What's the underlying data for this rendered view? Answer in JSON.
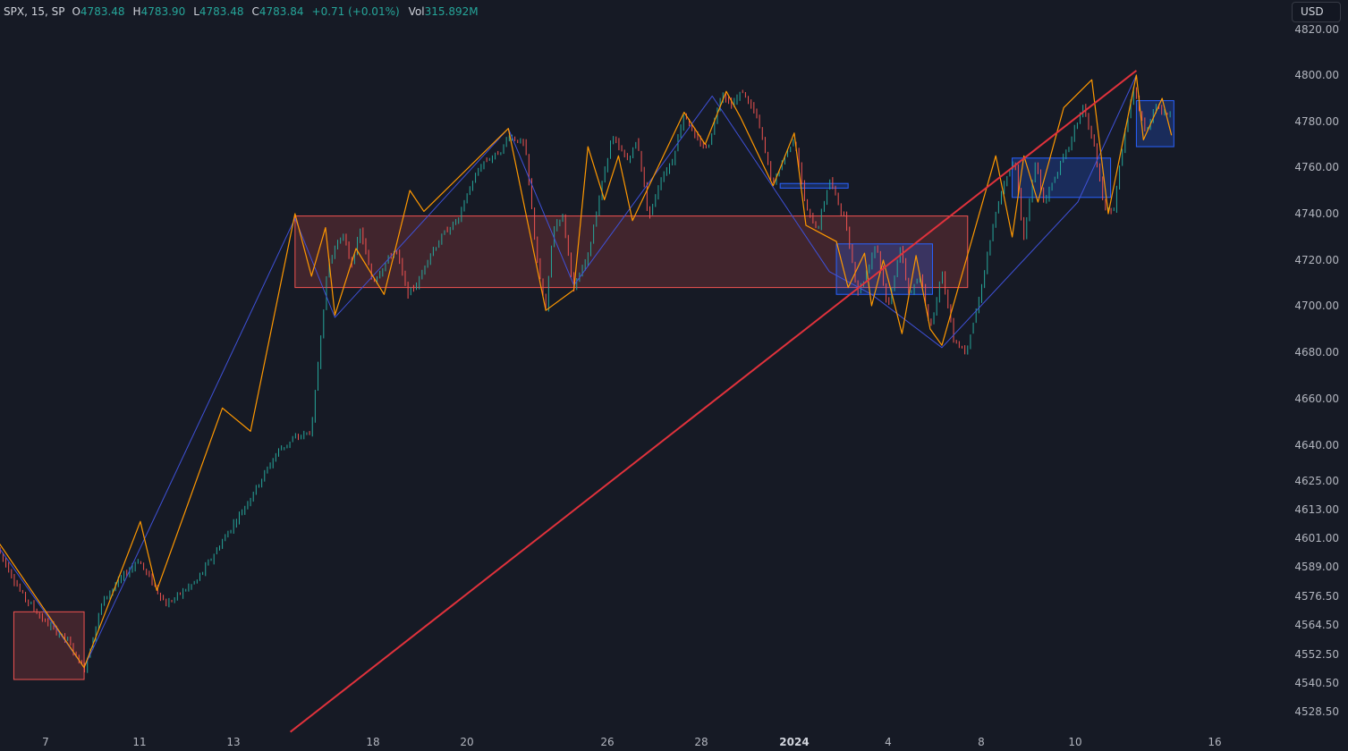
{
  "legend": {
    "symbol_text": "SPX, 15, SP",
    "open_key": "O",
    "open": "4783.48",
    "high_key": "H",
    "high": "4783.90",
    "low_key": "L",
    "low": "4783.48",
    "close_key": "C",
    "close": "4783.84",
    "change": "+0.71 (+0.01%)",
    "vol_key": "Vol",
    "volume": "315.892M"
  },
  "currency_button": "USD",
  "colors": {
    "background": "#161a25",
    "up": "#26a69a",
    "down": "#ef5350",
    "zigzag_minor": "#ff9800",
    "zigzag_major": "#3f51d8",
    "trendline": "#e0323c",
    "zone_bearish": "#ef5350",
    "zone_bullish": "#2962ff",
    "axis_text": "#b2b5be"
  },
  "chart_data": {
    "type": "candlestick",
    "symbol": "SPX",
    "interval": "15",
    "y_axis": {
      "labels": [
        "4820.00",
        "4800.00",
        "4780.00",
        "4760.00",
        "4740.00",
        "4720.00",
        "4700.00",
        "4680.00",
        "4660.00",
        "4640.00",
        "4625.00",
        "4613.00",
        "4601.00",
        "4589.00",
        "4576.50",
        "4564.50",
        "4552.50",
        "4540.50",
        "4528.50"
      ]
    },
    "x_axis": {
      "labels": [
        {
          "text": "7"
        },
        {
          "text": "11"
        },
        {
          "text": "13"
        },
        {
          "text": "18"
        },
        {
          "text": "20"
        },
        {
          "text": "26"
        },
        {
          "text": "28"
        },
        {
          "text": "2024",
          "bold": true
        },
        {
          "text": "4"
        },
        {
          "text": "8"
        },
        {
          "text": "10"
        },
        {
          "text": "16"
        }
      ]
    },
    "price_path": [
      [
        -2,
        4597
      ],
      [
        -1,
        4578
      ],
      [
        0,
        4566
      ],
      [
        1,
        4558
      ],
      [
        1.7,
        4546
      ],
      [
        2.5,
        4575
      ],
      [
        4,
        4592
      ],
      [
        5.2,
        4573
      ],
      [
        6.5,
        4583
      ],
      [
        8.6,
        4615
      ],
      [
        10,
        4638
      ],
      [
        10.7,
        4643
      ],
      [
        11.4,
        4646
      ],
      [
        12.1,
        4718
      ],
      [
        12.7,
        4732
      ],
      [
        13.1,
        4718
      ],
      [
        13.5,
        4733
      ],
      [
        14,
        4710
      ],
      [
        14.5,
        4718
      ],
      [
        15,
        4725
      ],
      [
        15.5,
        4705
      ],
      [
        16,
        4711
      ],
      [
        16.3,
        4720
      ],
      [
        17.1,
        4732
      ],
      [
        17.7,
        4738
      ],
      [
        18.1,
        4750
      ],
      [
        18.7,
        4762
      ],
      [
        19.5,
        4767
      ],
      [
        19.8,
        4774
      ],
      [
        20.5,
        4770
      ],
      [
        21.1,
        4714
      ],
      [
        21.4,
        4698
      ],
      [
        21.7,
        4733
      ],
      [
        22.1,
        4740
      ],
      [
        22.6,
        4707
      ],
      [
        23.2,
        4722
      ],
      [
        23.6,
        4743
      ],
      [
        24.2,
        4773
      ],
      [
        24.9,
        4763
      ],
      [
        25.3,
        4772
      ],
      [
        25.8,
        4738
      ],
      [
        26.3,
        4755
      ],
      [
        26.8,
        4763
      ],
      [
        27.3,
        4784
      ],
      [
        27.8,
        4772
      ],
      [
        28.3,
        4768
      ],
      [
        28.9,
        4793
      ],
      [
        29.3,
        4787
      ],
      [
        29.8,
        4793
      ],
      [
        30.4,
        4782
      ],
      [
        31.1,
        4752
      ],
      [
        31.5,
        4763
      ],
      [
        32,
        4773
      ],
      [
        32.5,
        4742
      ],
      [
        33,
        4733
      ],
      [
        33.5,
        4755
      ],
      [
        34.2,
        4736
      ],
      [
        34.7,
        4706
      ],
      [
        35,
        4712
      ],
      [
        35.5,
        4728
      ],
      [
        36,
        4698
      ],
      [
        36.5,
        4726
      ],
      [
        36.9,
        4705
      ],
      [
        37.4,
        4713
      ],
      [
        37.8,
        4690
      ],
      [
        38.3,
        4715
      ],
      [
        38.8,
        4686
      ],
      [
        39.3,
        4680
      ],
      [
        39.9,
        4703
      ],
      [
        40.3,
        4726
      ],
      [
        40.8,
        4748
      ],
      [
        41.4,
        4764
      ],
      [
        41.8,
        4729
      ],
      [
        42.3,
        4764
      ],
      [
        42.6,
        4744
      ],
      [
        43.3,
        4760
      ],
      [
        43.8,
        4771
      ],
      [
        44.3,
        4787
      ],
      [
        44.8,
        4769
      ],
      [
        45.2,
        4743
      ],
      [
        45.6,
        4740
      ],
      [
        46.1,
        4775
      ],
      [
        46.5,
        4794
      ],
      [
        47,
        4774
      ],
      [
        47.4,
        4788
      ],
      [
        47.8,
        4783
      ],
      [
        48.1,
        4784
      ]
    ],
    "zigzag_minor": [
      [
        -2,
        4600
      ],
      [
        1.7,
        4547
      ],
      [
        4.1,
        4608
      ],
      [
        4.8,
        4579
      ],
      [
        7.6,
        4656
      ],
      [
        8.8,
        4646
      ],
      [
        10.7,
        4740
      ],
      [
        11.4,
        4713
      ],
      [
        12,
        4734
      ],
      [
        12.4,
        4696
      ],
      [
        13.3,
        4725
      ],
      [
        14.5,
        4705
      ],
      [
        15.6,
        4750
      ],
      [
        16.2,
        4741
      ],
      [
        19.8,
        4777
      ],
      [
        21.4,
        4698
      ],
      [
        22.6,
        4707
      ],
      [
        23.2,
        4769
      ],
      [
        23.9,
        4746
      ],
      [
        24.5,
        4765
      ],
      [
        25.1,
        4737
      ],
      [
        27.3,
        4784
      ],
      [
        28.2,
        4770
      ],
      [
        29.1,
        4793
      ],
      [
        29.7,
        4782
      ],
      [
        31.1,
        4752
      ],
      [
        32,
        4775
      ],
      [
        32.5,
        4735
      ],
      [
        33.8,
        4728
      ],
      [
        34.3,
        4708
      ],
      [
        35,
        4723
      ],
      [
        35.3,
        4700
      ],
      [
        35.8,
        4720
      ],
      [
        36.6,
        4688
      ],
      [
        37.2,
        4722
      ],
      [
        37.8,
        4690
      ],
      [
        38.3,
        4683
      ],
      [
        40.6,
        4765
      ],
      [
        41.3,
        4730
      ],
      [
        41.8,
        4765
      ],
      [
        42.4,
        4745
      ],
      [
        43.5,
        4786
      ],
      [
        44.7,
        4798
      ],
      [
        45.4,
        4740
      ],
      [
        46.6,
        4800
      ],
      [
        46.9,
        4772
      ],
      [
        47.7,
        4790
      ],
      [
        48.1,
        4774
      ]
    ],
    "zigzag_major": [
      [
        -2,
        4598
      ],
      [
        1.7,
        4547
      ],
      [
        10.7,
        4738
      ],
      [
        12.4,
        4695
      ],
      [
        19.8,
        4777
      ],
      [
        22.6,
        4709
      ],
      [
        28.5,
        4791
      ],
      [
        33.5,
        4715
      ],
      [
        35.3,
        4705
      ],
      [
        38.3,
        4682
      ],
      [
        44.1,
        4745
      ],
      [
        46.6,
        4800
      ]
    ],
    "trendline": {
      "from": [
        10.5,
        4520
      ],
      "to": [
        46.6,
        4802
      ]
    },
    "zones": [
      {
        "type": "bearish",
        "x": [
          -1.3,
          1.7
        ],
        "y": [
          4542,
          4570
        ]
      },
      {
        "type": "bearish",
        "x": [
          10.7,
          39.4
        ],
        "y": [
          4708,
          4739
        ]
      },
      {
        "type": "bullish",
        "x": [
          31.4,
          34.3
        ],
        "y": [
          4751,
          4753
        ]
      },
      {
        "type": "bullish",
        "x": [
          33.8,
          37.9
        ],
        "y": [
          4705,
          4727
        ]
      },
      {
        "type": "bullish",
        "x": [
          41.3,
          45.5
        ],
        "y": [
          4747,
          4764
        ]
      },
      {
        "type": "bullish",
        "x": [
          46.6,
          48.2
        ],
        "y": [
          4769,
          4789
        ]
      }
    ]
  }
}
